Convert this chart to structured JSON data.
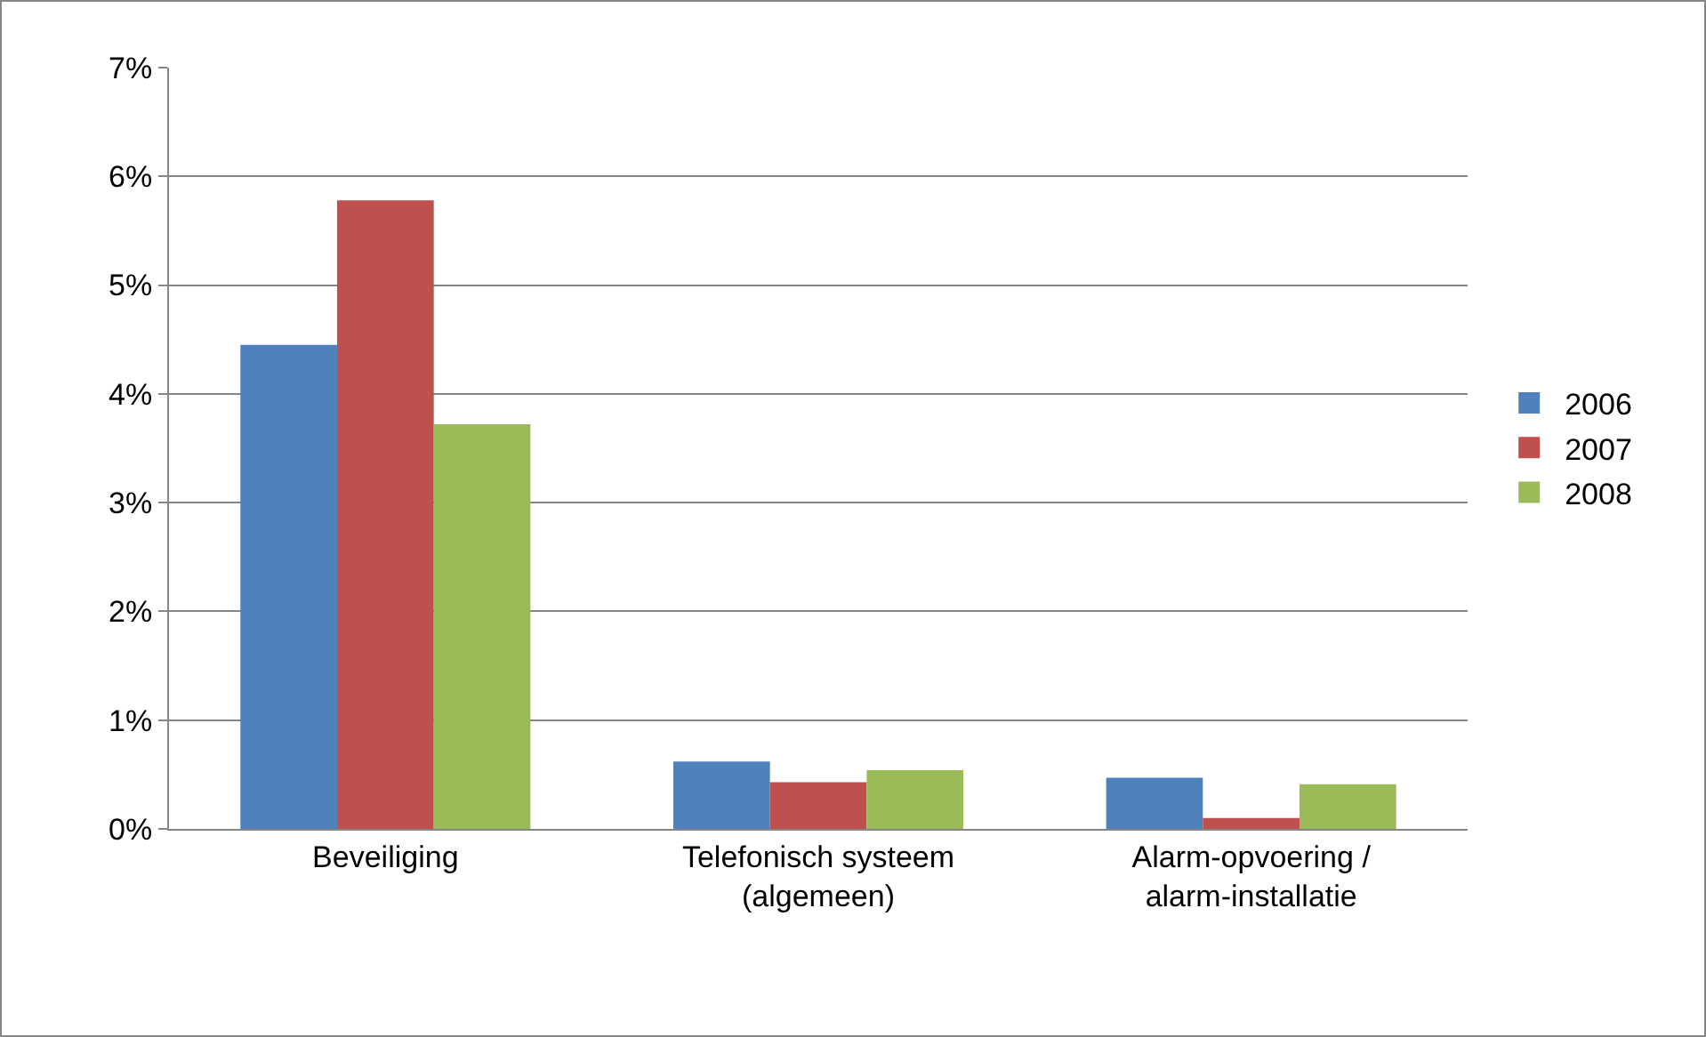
{
  "chart_data": {
    "type": "bar",
    "categories": [
      "Beveiliging",
      "Telefonisch systeem\n(algemeen)",
      "Alarm-opvoering /\nalarm-installatie"
    ],
    "series": [
      {
        "name": "2006",
        "color": "#4f81bd",
        "values": [
          4.45,
          0.62,
          0.47
        ]
      },
      {
        "name": "2007",
        "color": "#c0504d",
        "values": [
          5.78,
          0.43,
          0.1
        ]
      },
      {
        "name": "2008",
        "color": "#9bbb59",
        "values": [
          3.72,
          0.54,
          0.41
        ]
      }
    ],
    "ylim": [
      0,
      7
    ],
    "yticks": [
      {
        "value": 0,
        "label": "0%"
      },
      {
        "value": 1,
        "label": "1%"
      },
      {
        "value": 2,
        "label": "2%"
      },
      {
        "value": 3,
        "label": "3%"
      },
      {
        "value": 4,
        "label": "4%"
      },
      {
        "value": 5,
        "label": "5%"
      },
      {
        "value": 6,
        "label": "6%"
      },
      {
        "value": 7,
        "label": "7%"
      }
    ],
    "grid": "y",
    "legend": "right"
  }
}
